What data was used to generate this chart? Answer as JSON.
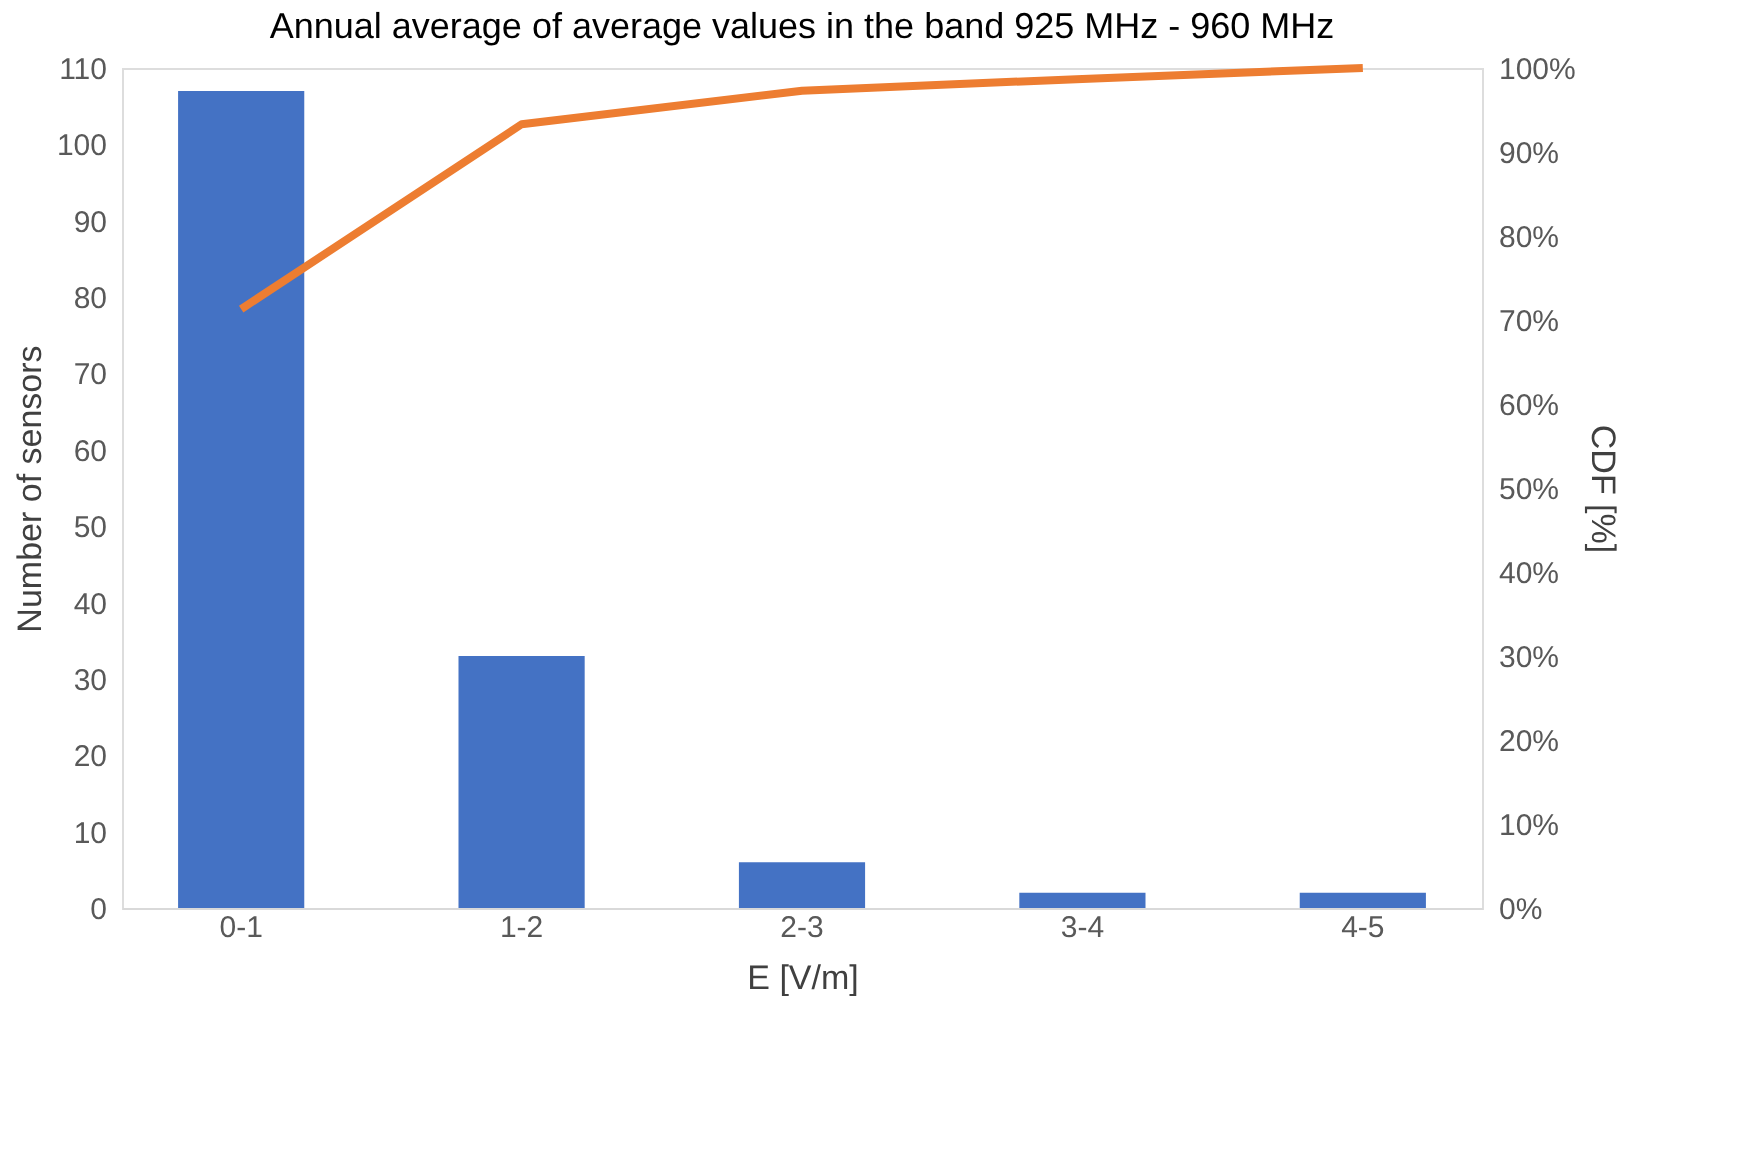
{
  "chart_data": {
    "type": "bar",
    "title": "Annual average of average values in the band 925 MHz - 960 MHz",
    "xlabel": "E [V/m]",
    "ylabel": "Number of sensors",
    "y2label": "CDF [%]",
    "categories": [
      "0-1",
      "1-2",
      "2-3",
      "3-4",
      "4-5"
    ],
    "series": [
      {
        "color": "#4472c4",
        "values": [
          107,
          33,
          6,
          2,
          2
        ]
      },
      {
        "type": "line",
        "axis": "y2",
        "color": "#ed7d31",
        "values": [
          71.3,
          93.3,
          97.3,
          98.7,
          100
        ],
        "line_style": "solid",
        "marker": "none"
      }
    ],
    "ylim": [
      0,
      110
    ],
    "yticks": [
      0,
      10,
      20,
      30,
      40,
      50,
      60,
      70,
      80,
      90,
      100,
      110
    ],
    "y2lim": [
      0,
      100
    ],
    "y2ticks": [
      {
        "value": 0,
        "label": "0%"
      },
      {
        "value": 10,
        "label": "10%"
      },
      {
        "value": 20,
        "label": "20%"
      },
      {
        "value": 30,
        "label": "30%"
      },
      {
        "value": 40,
        "label": "40%"
      },
      {
        "value": 50,
        "label": "50%"
      },
      {
        "value": 60,
        "label": "60%"
      },
      {
        "value": 70,
        "label": "70%"
      },
      {
        "value": 80,
        "label": "80%"
      },
      {
        "value": 90,
        "label": "90%"
      },
      {
        "value": 100,
        "label": "100%"
      }
    ],
    "grid": false
  }
}
